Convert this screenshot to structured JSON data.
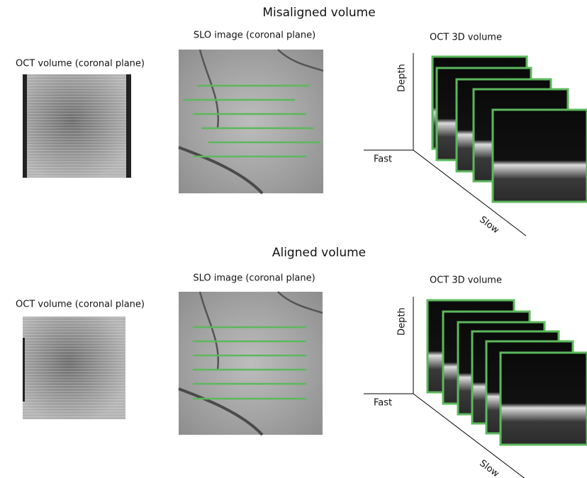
{
  "sections": [
    {
      "title": "Misaligned volume",
      "oct_coronal_label": "OCT volume (coronal plane)",
      "slo_label": "SLO image (coronal plane)",
      "oct_3d_label": "OCT 3D volume",
      "axes": {
        "depth": "Depth",
        "fast": "Fast",
        "slow": "Slow"
      }
    },
    {
      "title": "Aligned volume",
      "oct_coronal_label": "OCT volume (coronal plane)",
      "slo_label": "SLO image (coronal plane)",
      "oct_3d_label": "OCT 3D volume",
      "axes": {
        "depth": "Depth",
        "fast": "Fast",
        "slow": "Slow"
      }
    }
  ]
}
